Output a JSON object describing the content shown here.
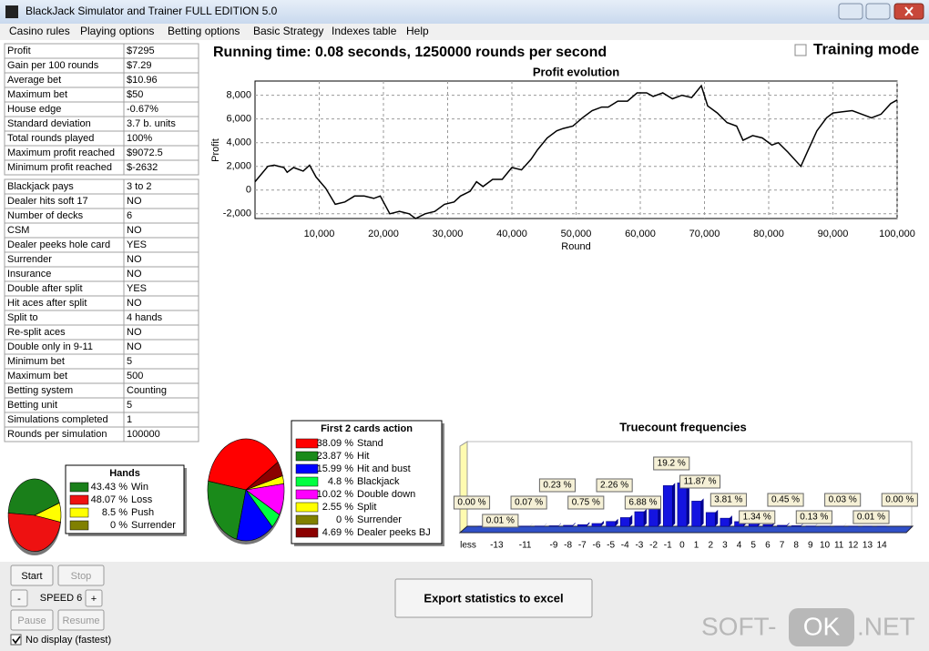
{
  "window": {
    "title": "BlackJack Simulator and Trainer FULL EDITION 5.0"
  },
  "menu": [
    "Casino rules",
    "Playing options",
    "Betting options",
    "Basic Strategy",
    "Indexes table",
    "Help"
  ],
  "results_table": [
    [
      "Profit",
      "$7295"
    ],
    [
      "Gain per 100 rounds",
      "$7.29"
    ],
    [
      "Average bet",
      "$10.96"
    ],
    [
      "Maximum bet",
      "$50"
    ],
    [
      "House edge",
      "-0.67%"
    ],
    [
      "Standard deviation",
      "3.7 b. units"
    ],
    [
      "Total rounds played",
      "100%"
    ],
    [
      "Maximum profit reached",
      "$9072.5"
    ],
    [
      "Minimum profit reached",
      "$-2632"
    ]
  ],
  "rules_table": [
    [
      "Blackjack pays",
      "3 to 2"
    ],
    [
      "Dealer hits soft 17",
      "NO"
    ],
    [
      "Number of decks",
      "6"
    ],
    [
      "CSM",
      "NO"
    ],
    [
      "Dealer peeks hole card",
      "YES"
    ],
    [
      "Surrender",
      "NO"
    ],
    [
      "Insurance",
      "NO"
    ],
    [
      "Double after split",
      "YES"
    ],
    [
      "Hit aces after split",
      "NO"
    ],
    [
      "Split to",
      "4 hands"
    ],
    [
      "Re-split aces",
      "NO"
    ],
    [
      "Double only in 9-11",
      "NO"
    ],
    [
      "Minimum bet",
      "5"
    ],
    [
      "Maximum bet",
      "500"
    ],
    [
      "Betting system",
      "Counting"
    ],
    [
      "Betting unit",
      "5"
    ],
    [
      "Simulations completed",
      "1"
    ],
    [
      "Rounds per simulation",
      "100000"
    ]
  ],
  "running_time": "Running time: 0.08 seconds, 1250000 rounds per second",
  "training_mode": "Training mode",
  "controls": {
    "start": "Start",
    "stop": "Stop",
    "minus": "-",
    "speed": "SPEED 6",
    "plus": "+",
    "pause": "Pause",
    "resume": "Resume",
    "no_display": "No display (fastest)",
    "export": "Export statistics to excel"
  },
  "watermark": [
    "SOFT-",
    "OK",
    ".NET"
  ],
  "chart_data": [
    {
      "type": "line",
      "title": "Profit evolution",
      "xlabel": "Round",
      "ylabel": "Profit",
      "color": "#000000",
      "grid": true,
      "x": [
        0,
        2000,
        3000,
        4500,
        5000,
        6000,
        7500,
        8500,
        9500,
        11000,
        12500,
        14000,
        15500,
        17000,
        18500,
        19500,
        21000,
        22500,
        24000,
        25000,
        26500,
        28000,
        29500,
        31000,
        32000,
        33500,
        34500,
        35500,
        37000,
        38500,
        40000,
        41500,
        43000,
        44000,
        45500,
        47000,
        48000,
        49500,
        51000,
        52500,
        54000,
        55000,
        56500,
        58000,
        59500,
        61000,
        62000,
        63500,
        65000,
        66500,
        68000,
        69500,
        70500,
        72000,
        73500,
        75000,
        76000,
        77500,
        79000,
        80500,
        81500,
        83000,
        85000,
        86000,
        87500,
        89000,
        90000,
        91500,
        93000,
        94500,
        96000,
        97500,
        99000,
        100000
      ],
      "values": [
        700,
        2000,
        2100,
        1900,
        1500,
        1900,
        1600,
        2100,
        1100,
        150,
        -1200,
        -1000,
        -500,
        -500,
        -700,
        -500,
        -2000,
        -1800,
        -2000,
        -2400,
        -2000,
        -1800,
        -1200,
        -1000,
        -500,
        -100,
        700,
        300,
        900,
        900,
        1900,
        1700,
        2600,
        3400,
        4400,
        5000,
        5200,
        5400,
        6100,
        6700,
        7000,
        7000,
        7500,
        7500,
        8200,
        8200,
        7900,
        8200,
        7700,
        8000,
        7800,
        8800,
        7100,
        6500,
        5700,
        5400,
        4200,
        4600,
        4400,
        3800,
        4000,
        3200,
        2000,
        3200,
        5000,
        6100,
        6500,
        6600,
        6700,
        6400,
        6100,
        6400,
        7300,
        7600
      ],
      "xlim": [
        0,
        100000
      ],
      "ylim": [
        -2400,
        9200
      ],
      "xticks": [
        {
          "value": 10000,
          "label": "10,000"
        },
        {
          "value": 20000,
          "label": "20,000"
        },
        {
          "value": 30000,
          "label": "30,000"
        },
        {
          "value": 40000,
          "label": "40,000"
        },
        {
          "value": 50000,
          "label": "50,000"
        },
        {
          "value": 60000,
          "label": "60,000"
        },
        {
          "value": 70000,
          "label": "70,000"
        },
        {
          "value": 80000,
          "label": "80,000"
        },
        {
          "value": 90000,
          "label": "90,000"
        },
        {
          "value": 100000,
          "label": "100,000"
        }
      ],
      "yticks": [
        {
          "value": -2000,
          "label": "-2,000"
        },
        0,
        {
          "value": 2000,
          "label": "2,000"
        },
        {
          "value": 4000,
          "label": "4,000"
        },
        {
          "value": 6000,
          "label": "6,000"
        },
        {
          "value": 8000,
          "label": "8,000"
        }
      ]
    },
    {
      "type": "pie",
      "title": "Hands",
      "categories": [
        "Win",
        "Loss",
        "Push",
        "Surrender"
      ],
      "values": [
        43.43,
        48.07,
        8.5,
        0
      ],
      "value_labels": [
        "43.43 %",
        "48.07 %",
        "8.5 %",
        "0 %"
      ],
      "colors": [
        "#1a7f1a",
        "#ee1111",
        "#ffff00",
        "#808000"
      ]
    },
    {
      "type": "pie",
      "title": "First 2 cards action",
      "categories": [
        "Stand",
        "Hit",
        "Hit and bust",
        "Blackjack",
        "Double down",
        "Split",
        "Surrender",
        "Dealer peeks BJ"
      ],
      "values": [
        38.09,
        23.87,
        15.99,
        4.8,
        10.02,
        2.55,
        0,
        4.69
      ],
      "value_labels": [
        "38.09 %",
        "23.87 %",
        "15.99 %",
        "4.8 %",
        "10.02 %",
        "2.55 %",
        "0 %",
        "4.69 %"
      ],
      "colors": [
        "#ff0000",
        "#1a8a1a",
        "#0000ff",
        "#00ff40",
        "#ff00ff",
        "#ffff00",
        "#808000",
        "#8b0000"
      ]
    },
    {
      "type": "bar",
      "title": "Truecount frequencies",
      "color": "#1414e0",
      "ylim": [
        0,
        40
      ],
      "categories": [
        "less",
        null,
        "-13",
        null,
        "-11",
        null,
        "-9",
        "-8",
        "-7",
        "-6",
        "-5",
        "-4",
        "-3",
        "-2",
        "-1",
        "0",
        "1",
        "2",
        "3",
        "4",
        "5",
        "6",
        "7",
        "8",
        "9",
        "10",
        "11",
        "12",
        "13",
        "14",
        null
      ],
      "values": [
        0,
        0.003,
        0.01,
        0.03,
        0.07,
        0.12,
        0.23,
        0.45,
        0.75,
        1.3,
        2.26,
        4.1,
        6.88,
        11.5,
        19.2,
        20.5,
        11.87,
        6.5,
        3.81,
        2.2,
        1.34,
        0.8,
        0.45,
        0.25,
        0.13,
        0.07,
        0.03,
        0.02,
        0.01,
        0.005,
        0
      ],
      "value_labels": [
        "0.00 %",
        null,
        "0.01 %",
        null,
        "0.07 %",
        null,
        "0.23 %",
        null,
        "0.75 %",
        null,
        "2.26 %",
        null,
        "6.88 %",
        null,
        "19.2 %",
        null,
        "11.87 %",
        null,
        "3.81 %",
        null,
        "1.34 %",
        null,
        "0.45 %",
        null,
        "0.13 %",
        null,
        "0.03 %",
        null,
        "0.01 %",
        null,
        "0.00 %"
      ]
    }
  ]
}
